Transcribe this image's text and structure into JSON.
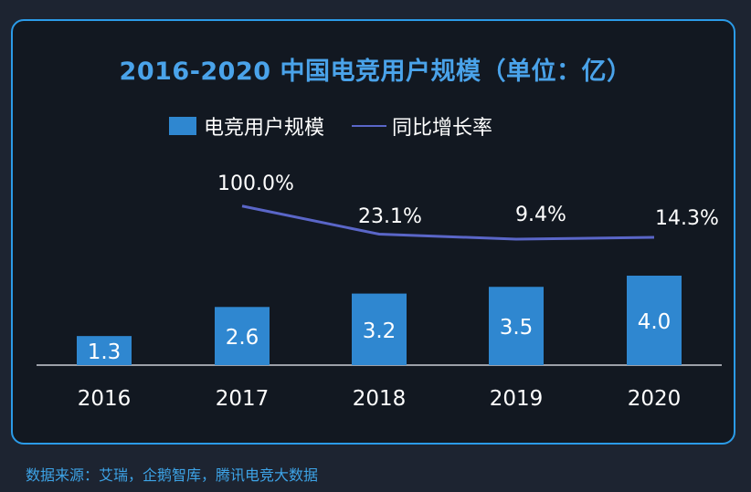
{
  "title": "2016-2020 中国电竞用户规模（单位：亿）",
  "legend": {
    "bar_label": "电竞用户规模",
    "line_label": "同比增长率"
  },
  "source": "数据来源：艾瑞，企鹅智库，腾讯电竞大数据",
  "colors": {
    "bar": "#2f87d0",
    "line": "#5a66c8",
    "border": "#2b9be8",
    "title": "#4aa3ea"
  },
  "chart_data": {
    "type": "bar",
    "categories": [
      "2016",
      "2017",
      "2018",
      "2019",
      "2020"
    ],
    "series": [
      {
        "name": "电竞用户规模",
        "type": "bar",
        "values": [
          1.3,
          2.6,
          3.2,
          3.5,
          4.0
        ],
        "labels": [
          "1.3",
          "2.6",
          "3.2",
          "3.5",
          "4.0"
        ]
      },
      {
        "name": "同比增长率",
        "type": "line",
        "values": [
          null,
          100.0,
          23.1,
          9.4,
          14.3
        ],
        "labels": [
          "",
          "100.0%",
          "23.1%",
          "9.4%",
          "14.3%"
        ]
      }
    ],
    "title": "2016-2020 中国电竞用户规模（单位：亿）",
    "xlabel": "",
    "ylabel": ""
  }
}
